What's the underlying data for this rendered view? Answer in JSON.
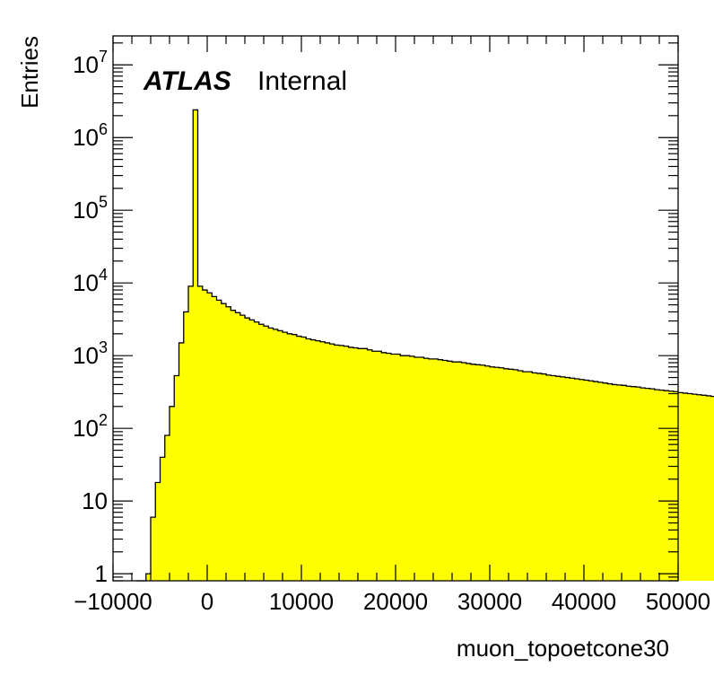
{
  "chart_data": {
    "type": "bar",
    "style": "step-histogram",
    "fill_color": "#ffff00",
    "line_color": "#000000",
    "xlabel": "muon_topoetcone30",
    "ylabel": "Entries",
    "xlim": [
      -10000,
      50000
    ],
    "ylim": [
      0.8,
      25000000
    ],
    "log_y": true,
    "grid": false,
    "bin_width": 500,
    "bin_start": -7500,
    "x_ticks": [
      {
        "value": -10000,
        "label": "−10000"
      },
      {
        "value": 0,
        "label": "0"
      },
      {
        "value": 10000,
        "label": "10000"
      },
      {
        "value": 20000,
        "label": "20000"
      },
      {
        "value": 30000,
        "label": "30000"
      },
      {
        "value": 40000,
        "label": "40000"
      },
      {
        "value": 50000,
        "label": "50000"
      }
    ],
    "y_ticks": [
      {
        "value": 1,
        "base": "1",
        "exp": ""
      },
      {
        "value": 10,
        "base": "10",
        "exp": ""
      },
      {
        "value": 100,
        "base": "10",
        "exp": "2"
      },
      {
        "value": 1000,
        "base": "10",
        "exp": "3"
      },
      {
        "value": 10000,
        "base": "10",
        "exp": "4"
      },
      {
        "value": 100000,
        "base": "10",
        "exp": "5"
      },
      {
        "value": 1000000,
        "base": "10",
        "exp": "6"
      },
      {
        "value": 10000000,
        "base": "10",
        "exp": "7"
      }
    ],
    "values": [
      0.8,
      0.8,
      1,
      6,
      18,
      40,
      80,
      200,
      530,
      1500,
      4000,
      9000,
      2400000,
      9000,
      8000,
      7300,
      6500,
      5800,
      5200,
      4700,
      4200,
      3900,
      3600,
      3300,
      3100,
      2900,
      2700,
      2550,
      2400,
      2300,
      2200,
      2100,
      2000,
      1950,
      1850,
      1800,
      1700,
      1650,
      1600,
      1550,
      1500,
      1450,
      1400,
      1380,
      1350,
      1300,
      1280,
      1250,
      1250,
      1200,
      1150,
      1150,
      1100,
      1080,
      1050,
      1050,
      1000,
      1000,
      980,
      950,
      950,
      920,
      900,
      900,
      880,
      860,
      840,
      820,
      820,
      800,
      780,
      760,
      750,
      740,
      720,
      700,
      690,
      680,
      660,
      650,
      640,
      620,
      600,
      600,
      580,
      570,
      560,
      540,
      530,
      520,
      510,
      500,
      490,
      480,
      470,
      460,
      450,
      440,
      430,
      420,
      410,
      400,
      395,
      390,
      380,
      375,
      370,
      360,
      355,
      350,
      340,
      335,
      330,
      325,
      320,
      310,
      305,
      300,
      295,
      290,
      285,
      280,
      275,
      270,
      265,
      260,
      255,
      250,
      245,
      240,
      235,
      230,
      225,
      220,
      215,
      210,
      205,
      200
    ]
  },
  "label": {
    "experiment": "ATLAS",
    "status": "Internal"
  }
}
